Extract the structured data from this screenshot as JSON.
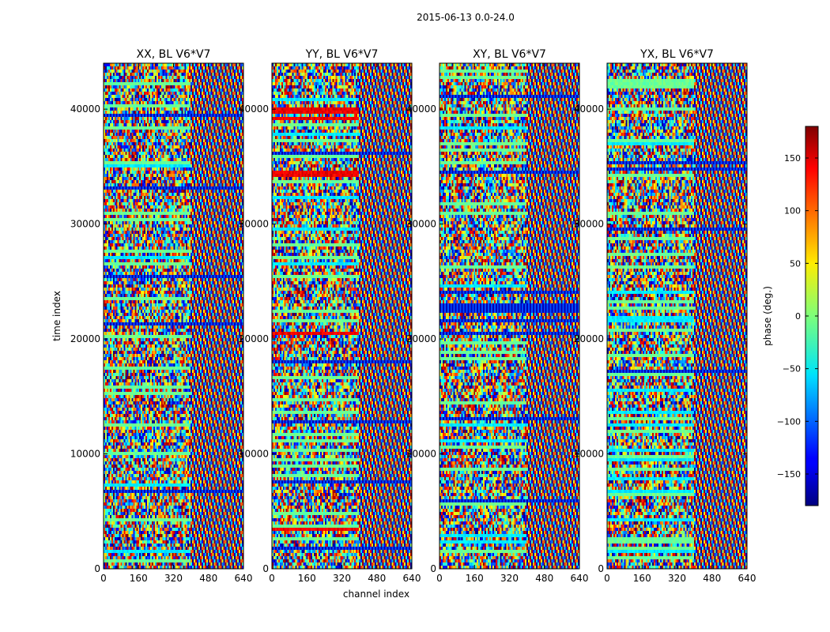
{
  "figure_title": "2015-06-13 0.0-24.0",
  "chart_data": {
    "type": "heatmap",
    "title": "2015-06-13 0.0-24.0",
    "xlabel": "channel index",
    "ylabel": "time index",
    "xlim": [
      0,
      640
    ],
    "ylim": [
      0,
      44000
    ],
    "xticks": [
      0,
      160,
      320,
      480,
      640
    ],
    "yticks": [
      0,
      10000,
      20000,
      30000,
      40000
    ],
    "colormap": "jet",
    "panels": [
      {
        "title": "XX, BL V6*V7",
        "polarization": "XX",
        "baseline": "V6*V7"
      },
      {
        "title": "YY, BL V6*V7",
        "polarization": "YY",
        "baseline": "V6*V7"
      },
      {
        "title": "XY, BL V6*V7",
        "polarization": "XY",
        "baseline": "V6*V7"
      },
      {
        "title": "YX, BL V6*V7",
        "polarization": "YX",
        "baseline": "V6*V7"
      }
    ],
    "colorbar": {
      "label": "phase (deg.)",
      "range": [
        -180,
        180
      ],
      "ticks": [
        -150,
        -100,
        -50,
        0,
        50,
        100,
        150
      ],
      "tick_labels": [
        "−150",
        "−100",
        "−50",
        "0",
        "50",
        "100",
        "150"
      ]
    }
  }
}
